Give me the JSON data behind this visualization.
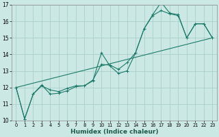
{
  "xlabel": "Humidex (Indice chaleur)",
  "background_color": "#cce8e4",
  "grid_color": "#aacfcb",
  "line_color": "#1a7a6a",
  "xlim": [
    -0.5,
    23.5
  ],
  "ylim": [
    10,
    17
  ],
  "yticks": [
    10,
    11,
    12,
    13,
    14,
    15,
    16,
    17
  ],
  "xticks": [
    0,
    1,
    2,
    3,
    4,
    5,
    6,
    7,
    8,
    9,
    10,
    11,
    12,
    13,
    14,
    15,
    16,
    17,
    18,
    19,
    20,
    21,
    22,
    23
  ],
  "line1_x": [
    0,
    1,
    2,
    3,
    4,
    5,
    6,
    7,
    8,
    9,
    10,
    11,
    12,
    13,
    14,
    15,
    16,
    17,
    18,
    19,
    20,
    21,
    22,
    23
  ],
  "line1_y": [
    12.0,
    10.1,
    11.6,
    12.1,
    11.85,
    11.75,
    11.95,
    12.1,
    12.1,
    12.45,
    13.4,
    13.35,
    13.1,
    13.5,
    14.1,
    15.55,
    16.4,
    17.15,
    16.5,
    16.4,
    15.0,
    15.85,
    15.85,
    15.0
  ],
  "line2_x": [
    0,
    1,
    2,
    3,
    4,
    5,
    6,
    7,
    8,
    9,
    10,
    11,
    12,
    13,
    14,
    15,
    16,
    17,
    18,
    19,
    20,
    21,
    22,
    23
  ],
  "line2_y": [
    12.0,
    10.1,
    11.6,
    12.15,
    11.6,
    11.65,
    11.8,
    12.05,
    12.1,
    12.4,
    14.1,
    13.3,
    12.85,
    13.0,
    14.1,
    15.55,
    16.35,
    16.65,
    16.45,
    16.35,
    15.0,
    15.85,
    15.85,
    15.0
  ],
  "line3_x": [
    0,
    23
  ],
  "line3_y": [
    12.0,
    15.0
  ]
}
